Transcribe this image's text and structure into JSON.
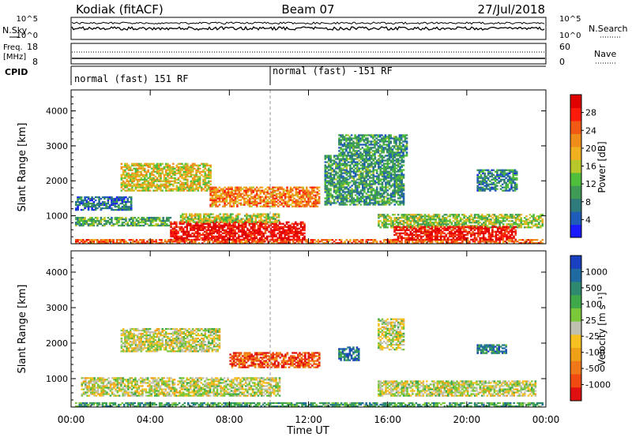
{
  "header": {
    "station": "Kodiak (fitACF)",
    "beam": "Beam 07",
    "date": "27/Jul/2018"
  },
  "top_panels": {
    "nsky": {
      "label": "N.Sky",
      "ticks": [
        "10^5",
        "10^0"
      ]
    },
    "nsearch": {
      "label": "N.Search",
      "ticks": [
        "10^5",
        "10^0"
      ]
    },
    "freq": {
      "label_line1": "Freq.",
      "label_line2": "[MHz]",
      "ticks": [
        "18",
        "8"
      ]
    },
    "nave": {
      "label": "Nave",
      "ticks": [
        "60",
        "0"
      ]
    },
    "cpid": {
      "label": "CPID",
      "segments": [
        {
          "text": "normal (fast) 151 RF",
          "start_hour": 0
        },
        {
          "text": "normal (fast) -151 RF",
          "start_hour": 10
        }
      ]
    }
  },
  "chart_data": [
    {
      "type": "heatmap",
      "name": "power-panel",
      "ylabel": "Slant Range [km]",
      "xlabel": "Time UT",
      "xlim": [
        0,
        24
      ],
      "ylim": [
        200,
        4600
      ],
      "x_ticks": [
        "00:00",
        "04:00",
        "08:00",
        "12:00",
        "16:00",
        "20:00",
        "00:00"
      ],
      "y_ticks": [
        1000,
        2000,
        3000,
        4000
      ],
      "colorbar": {
        "label": "Power [dB]",
        "ticks": [
          "4",
          "8",
          "12",
          "16",
          "20",
          "24",
          "28"
        ],
        "colors": [
          "#1a1aff",
          "#1f5bb8",
          "#2f7a7a",
          "#3f9a55",
          "#4fbe3a",
          "#b8c82a",
          "#f0b020",
          "#f08c1a",
          "#f05a14",
          "#ff1a0a",
          "#e00000"
        ]
      },
      "regions": [
        {
          "t0": 0.2,
          "t1": 23.8,
          "r0": 200,
          "r1": 330,
          "level": 0.75
        },
        {
          "t0": 0.2,
          "t1": 5.0,
          "r0": 700,
          "r1": 950,
          "level": 0.35
        },
        {
          "t0": 5.0,
          "t1": 11.8,
          "r0": 300,
          "r1": 800,
          "level": 0.95
        },
        {
          "t0": 5.5,
          "t1": 10.5,
          "r0": 800,
          "r1": 1050,
          "level": 0.5
        },
        {
          "t0": 0.2,
          "t1": 3.0,
          "r0": 1150,
          "r1": 1550,
          "level": 0.2
        },
        {
          "t0": 2.5,
          "t1": 7.0,
          "r0": 1700,
          "r1": 2500,
          "level": 0.55
        },
        {
          "t0": 7.0,
          "t1": 12.5,
          "r0": 1250,
          "r1": 1800,
          "level": 0.7
        },
        {
          "t0": 12.8,
          "t1": 16.8,
          "r0": 1300,
          "r1": 2700,
          "level": 0.3
        },
        {
          "t0": 15.5,
          "t1": 23.8,
          "r0": 650,
          "r1": 1050,
          "level": 0.45
        },
        {
          "t0": 16.3,
          "t1": 22.5,
          "r0": 300,
          "r1": 700,
          "level": 0.92
        },
        {
          "t0": 13.5,
          "t1": 17.0,
          "r0": 2700,
          "r1": 3300,
          "level": 0.3
        },
        {
          "t0": 20.5,
          "t1": 22.5,
          "r0": 1700,
          "r1": 2300,
          "level": 0.25
        }
      ]
    },
    {
      "type": "heatmap",
      "name": "velocity-panel",
      "ylabel": "Slant Range [km]",
      "xlabel": "Time UT",
      "xlim": [
        0,
        24
      ],
      "ylim": [
        200,
        4600
      ],
      "x_ticks": [
        "00:00",
        "04:00",
        "08:00",
        "12:00",
        "16:00",
        "20:00",
        "00:00"
      ],
      "y_ticks": [
        1000,
        2000,
        3000,
        4000
      ],
      "colorbar": {
        "label": "Velocity [m s⁻¹]",
        "ticks": [
          "1000",
          "500",
          "100",
          "25",
          "-25",
          "-100",
          "-500",
          "-1000"
        ],
        "colors": [
          "#1a3fbf",
          "#1f6aa0",
          "#2e8a6e",
          "#3fa84a",
          "#7ac83a",
          "#c0c0b0",
          "#f5c020",
          "#f0a018",
          "#f07818",
          "#f04a12",
          "#e01010"
        ]
      },
      "regions": [
        {
          "t0": 0.2,
          "t1": 23.8,
          "r0": 200,
          "r1": 330,
          "level": 0.3
        },
        {
          "t0": 0.5,
          "t1": 10.5,
          "r0": 500,
          "r1": 1000,
          "level": 0.5
        },
        {
          "t0": 2.5,
          "t1": 7.5,
          "r0": 1750,
          "r1": 2400,
          "level": 0.5
        },
        {
          "t0": 8.0,
          "t1": 12.5,
          "r0": 1300,
          "r1": 1750,
          "level": 0.85
        },
        {
          "t0": 13.5,
          "t1": 14.5,
          "r0": 1500,
          "r1": 1900,
          "level": 0.15
        },
        {
          "t0": 15.5,
          "t1": 23.5,
          "r0": 500,
          "r1": 950,
          "level": 0.5
        },
        {
          "t0": 15.5,
          "t1": 16.8,
          "r0": 1800,
          "r1": 2700,
          "level": 0.5
        },
        {
          "t0": 20.5,
          "t1": 22.0,
          "r0": 1700,
          "r1": 1950,
          "level": 0.2
        }
      ]
    }
  ]
}
